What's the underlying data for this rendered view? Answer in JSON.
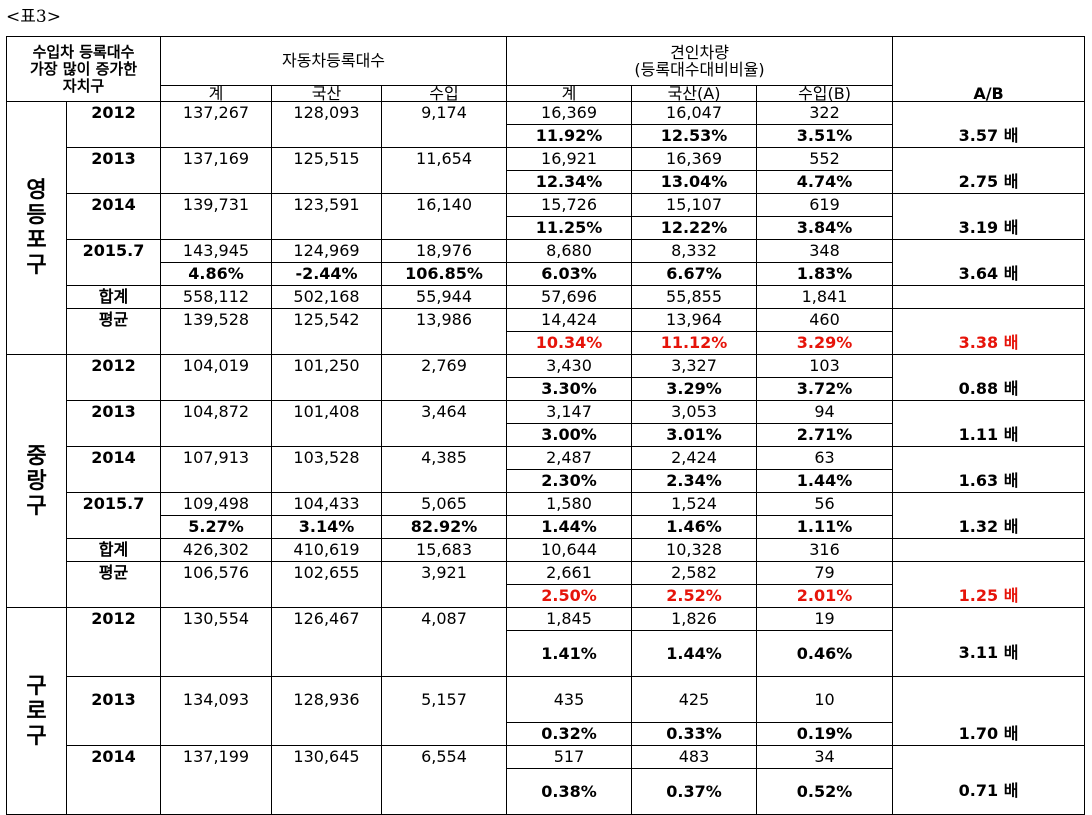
{
  "caption": "<표3>",
  "header": {
    "corner": "수입차 등록대수 가장 많이 증가한 자치구",
    "corner_lines": [
      "수입차 등록대수",
      "가장 많이 증가한",
      "자치구"
    ],
    "group1": "자동차등록대수",
    "group2_line1": "견인차량",
    "group2_line2": "(등록대수대비비율)",
    "sub": [
      "계",
      "국산",
      "수입",
      "계",
      "국산(A)",
      "수입(B)",
      "A/B"
    ]
  },
  "districts": [
    {
      "name_chars": [
        "영",
        "등",
        "포",
        "구"
      ],
      "rows": [
        {
          "label": "2012",
          "v": [
            "137,267",
            "128,093",
            "9,174",
            "16,369",
            "16,047",
            "322",
            ""
          ]
        },
        {
          "label": "",
          "v": [
            "",
            "",
            "",
            "11.92%",
            "12.53%",
            "3.51%",
            "3.57 배"
          ],
          "bold": true
        },
        {
          "label": "2013",
          "v": [
            "137,169",
            "125,515",
            "11,654",
            "16,921",
            "16,369",
            "552",
            ""
          ]
        },
        {
          "label": "",
          "v": [
            "",
            "",
            "",
            "12.34%",
            "13.04%",
            "4.74%",
            "2.75 배"
          ],
          "bold": true
        },
        {
          "label": "2014",
          "v": [
            "139,731",
            "123,591",
            "16,140",
            "15,726",
            "15,107",
            "619",
            ""
          ]
        },
        {
          "label": "",
          "v": [
            "",
            "",
            "",
            "11.25%",
            "12.22%",
            "3.84%",
            "3.19 배"
          ],
          "bold": true
        },
        {
          "label": "2015.7",
          "v": [
            "143,945",
            "124,969",
            "18,976",
            "8,680",
            "8,332",
            "348",
            ""
          ]
        },
        {
          "label": "",
          "v": [
            "4.86%",
            "-2.44%",
            "106.85%",
            "6.03%",
            "6.67%",
            "1.83%",
            "3.64 배"
          ],
          "bold": true
        },
        {
          "label": "합계",
          "v": [
            "558,112",
            "502,168",
            "55,944",
            "57,696",
            "55,855",
            "1,841",
            ""
          ]
        },
        {
          "label": "평균",
          "v": [
            "139,528",
            "125,542",
            "13,986",
            "14,424",
            "13,964",
            "460",
            ""
          ]
        },
        {
          "label": "",
          "v": [
            "",
            "",
            "",
            "10.34%",
            "11.12%",
            "3.29%",
            "3.38 배"
          ],
          "bold": true,
          "red": true
        }
      ]
    },
    {
      "name_chars": [
        "중",
        "랑",
        "구"
      ],
      "rows": [
        {
          "label": "2012",
          "v": [
            "104,019",
            "101,250",
            "2,769",
            "3,430",
            "3,327",
            "103",
            ""
          ]
        },
        {
          "label": "",
          "v": [
            "",
            "",
            "",
            "3.30%",
            "3.29%",
            "3.72%",
            "0.88 배"
          ],
          "bold": true
        },
        {
          "label": "2013",
          "v": [
            "104,872",
            "101,408",
            "3,464",
            "3,147",
            "3,053",
            "94",
            ""
          ]
        },
        {
          "label": "",
          "v": [
            "",
            "",
            "",
            "3.00%",
            "3.01%",
            "2.71%",
            "1.11 배"
          ],
          "bold": true
        },
        {
          "label": "2014",
          "v": [
            "107,913",
            "103,528",
            "4,385",
            "2,487",
            "2,424",
            "63",
            ""
          ]
        },
        {
          "label": "",
          "v": [
            "",
            "",
            "",
            "2.30%",
            "2.34%",
            "1.44%",
            "1.63 배"
          ],
          "bold": true
        },
        {
          "label": "2015.7",
          "v": [
            "109,498",
            "104,433",
            "5,065",
            "1,580",
            "1,524",
            "56",
            ""
          ]
        },
        {
          "label": "",
          "v": [
            "5.27%",
            "3.14%",
            "82.92%",
            "1.44%",
            "1.46%",
            "1.11%",
            "1.32 배"
          ],
          "bold": true
        },
        {
          "label": "합계",
          "v": [
            "426,302",
            "410,619",
            "15,683",
            "10,644",
            "10,328",
            "316",
            ""
          ]
        },
        {
          "label": "평균",
          "v": [
            "106,576",
            "102,655",
            "3,921",
            "2,661",
            "2,582",
            "79",
            ""
          ]
        },
        {
          "label": "",
          "v": [
            "",
            "",
            "",
            "2.50%",
            "2.52%",
            "2.01%",
            "1.25 배"
          ],
          "bold": true,
          "red": true
        }
      ]
    },
    {
      "name_chars": [
        "구",
        "로",
        "구"
      ],
      "rows": [
        {
          "label": "2012",
          "v": [
            "130,554",
            "126,467",
            "4,087",
            "1,845",
            "1,826",
            "19",
            ""
          ]
        },
        {
          "label": "",
          "v": [
            "",
            "",
            "",
            "1.41%",
            "1.44%",
            "0.46%",
            "3.11 배"
          ],
          "bold": true,
          "tall": true
        },
        {
          "label": "2013",
          "v": [
            "134,093",
            "128,936",
            "5,157",
            "435",
            "425",
            "10",
            ""
          ],
          "tall": true
        },
        {
          "label": "",
          "v": [
            "",
            "",
            "",
            "0.32%",
            "0.33%",
            "0.19%",
            "1.70 배"
          ],
          "bold": true
        },
        {
          "label": "2014",
          "v": [
            "137,199",
            "130,645",
            "6,554",
            "517",
            "483",
            "34",
            ""
          ]
        },
        {
          "label": "",
          "v": [
            "",
            "",
            "",
            "0.38%",
            "0.37%",
            "0.52%",
            "0.71 배"
          ],
          "bold": true,
          "tall": true
        }
      ]
    }
  ]
}
